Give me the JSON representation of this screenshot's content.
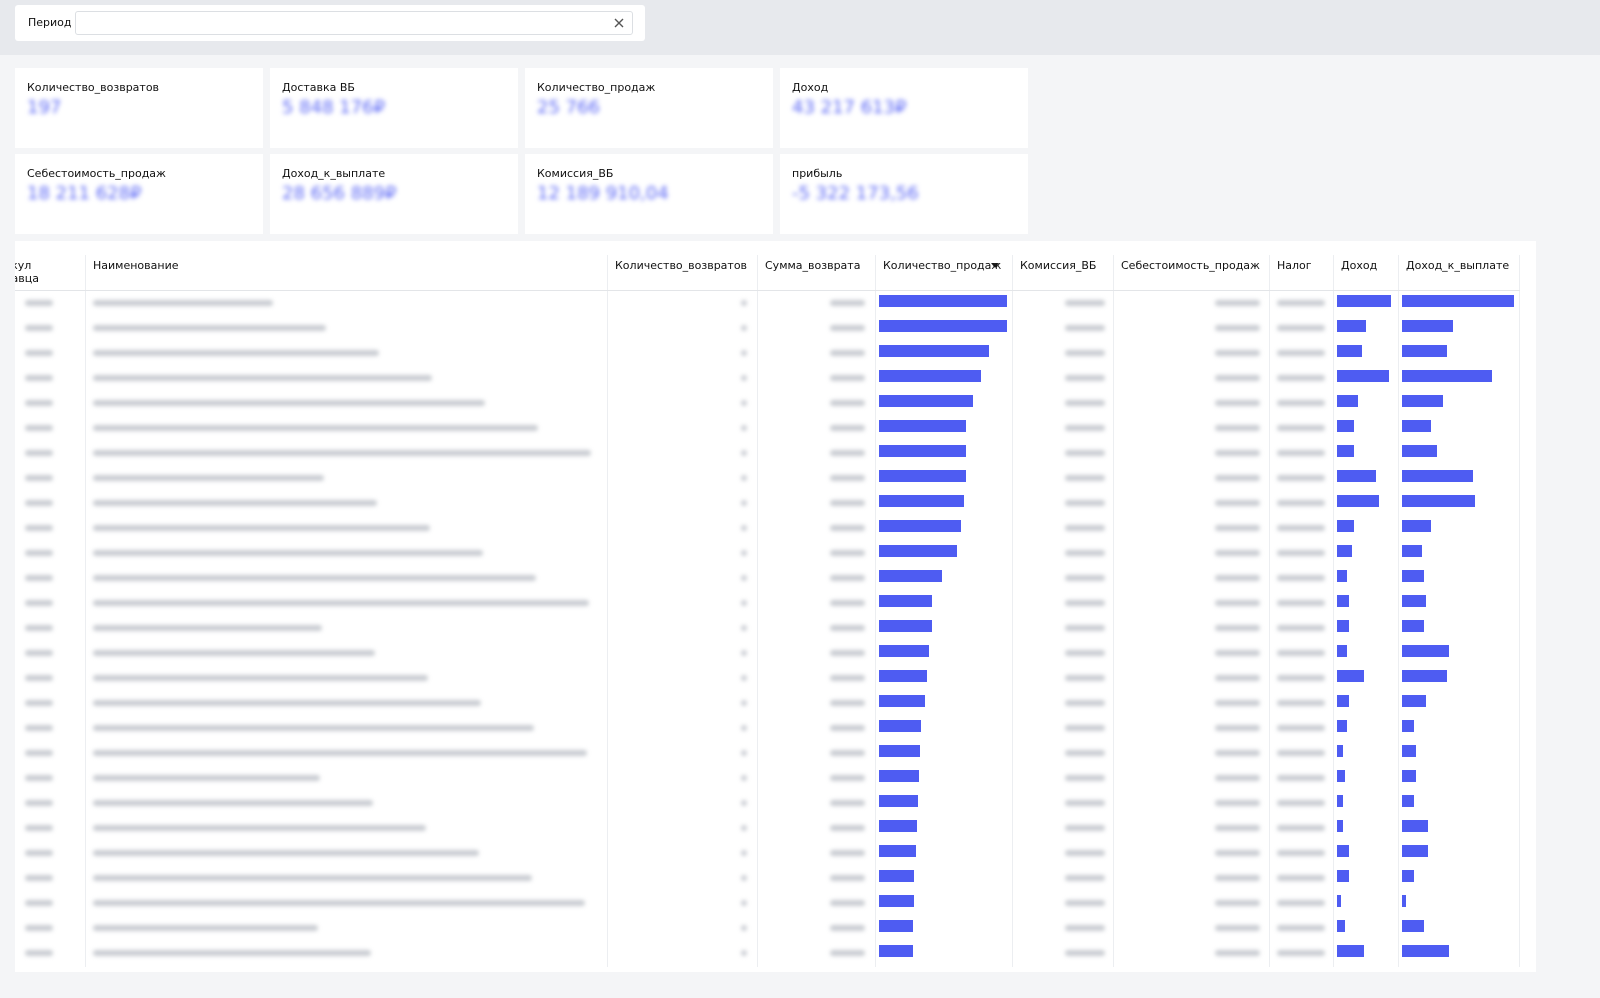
{
  "filter": {
    "label": "Период"
  },
  "cards": [
    {
      "label": "Количество_возвратов",
      "value": "197"
    },
    {
      "label": "Доставка ВБ",
      "value": "5 848 176₽"
    },
    {
      "label": "Количество_продаж",
      "value": "25 766"
    },
    {
      "label": "Доход",
      "value": "43 217 613₽"
    },
    {
      "label": "Себестоимость_продаж",
      "value": "18 211 628₽"
    },
    {
      "label": "Доход_к_выплате",
      "value": "28 656 889₽"
    },
    {
      "label": "Комиссия_ВБ",
      "value": "12 189 910,04"
    },
    {
      "label": "прибыль",
      "value": "-5 322 173,56"
    }
  ],
  "table": {
    "columns": [
      "Артикул продавца",
      "Наименование",
      "Количество_возвратов",
      "Сумма_возврата",
      "Количество_продаж",
      "Комиссия_ВБ",
      "Себестоимость_продаж",
      "Налог",
      "Доход",
      "Доход_к_выплате"
    ],
    "bar_columns": {
      "Количество_продаж": [
        128,
        128,
        110,
        102,
        94,
        87,
        87,
        87,
        85,
        82,
        78,
        63,
        53,
        53,
        50,
        48,
        46,
        42,
        41,
        40,
        39,
        38,
        37,
        35,
        35,
        34,
        34
      ],
      "Доход": [
        52,
        28,
        24,
        50,
        20,
        16,
        16,
        38,
        40,
        16,
        14,
        10,
        12,
        12,
        10,
        26,
        12,
        10,
        6,
        8,
        6,
        6,
        12,
        12,
        4,
        8,
        26
      ],
      "Доход_к_выплате": [
        110,
        50,
        44,
        88,
        40,
        28,
        34,
        70,
        72,
        28,
        20,
        22,
        24,
        22,
        46,
        44,
        24,
        12,
        14,
        14,
        12,
        26,
        26,
        12,
        4,
        22,
        46
      ]
    }
  }
}
